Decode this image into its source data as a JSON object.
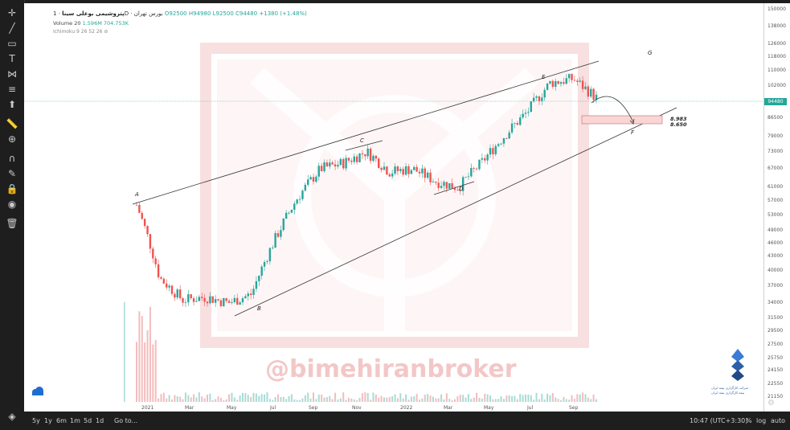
{
  "legend": {
    "symbol": "پتروشیمی بوعلی سینا",
    "interval": "1D",
    "exchange": "بورس تهران",
    "ohlc": "O92500 H94980 L92500 C94480 +1380 (+1.48%)",
    "volume_label": "Volume 20",
    "volume_values": "1.596M 704.753K",
    "ichimoku": "Ichimoku 9 26 52 26"
  },
  "price_axis": {
    "labels": [
      "150000",
      "138000",
      "126000",
      "118000",
      "110000",
      "102000",
      "94480",
      "86500",
      "79000",
      "73000",
      "67000",
      "61000",
      "57000",
      "53000",
      "49000",
      "46000",
      "43000",
      "40000",
      "37000",
      "34000",
      "31500",
      "29500",
      "27500",
      "25750",
      "24150",
      "22550",
      "21150"
    ],
    "current": "94480"
  },
  "time_axis": {
    "labels": [
      "2021",
      "Mar",
      "May",
      "Jul",
      "Sep",
      "Nov",
      "2022",
      "Mar",
      "May",
      "Jul",
      "Sep"
    ]
  },
  "annotations": {
    "points": [
      "A",
      "B",
      "C",
      "D",
      "E",
      "F",
      "G"
    ],
    "target_box_top": "8.983",
    "target_box_bottom": "8.650"
  },
  "watermark": {
    "handle": "@bimehiranbroker"
  },
  "logo": {
    "line1": "شرکت کارگزاری بیمه ایران",
    "line2": "بیمه کارگزاری بیمه ایران"
  },
  "bottom_bar": {
    "ranges": [
      "5y",
      "1y",
      "6m",
      "1m",
      "5d",
      "1d"
    ],
    "goto": "Go to...",
    "time": "10:47 (UTC+3:30)",
    "percent": "%",
    "log": "log",
    "auto": "auto"
  },
  "colors": {
    "up": "#26a69a",
    "down": "#ef5350",
    "watermark": "#f3c7c7"
  },
  "chart_data": {
    "type": "line",
    "title": "",
    "xlabel": "",
    "ylabel": "",
    "x": [
      "2021-01",
      "2021-02",
      "2021-03",
      "2021-04",
      "2021-05",
      "2021-06",
      "2021-07",
      "2021-08",
      "2021-09",
      "2021-10",
      "2021-11",
      "2021-12",
      "2022-01",
      "2022-02",
      "2022-03",
      "2022-04",
      "2022-05",
      "2022-06",
      "2022-07",
      "2022-08",
      "2022-09"
    ],
    "series": [
      {
        "values": [
          55000,
          38000,
          34000,
          34500,
          33500,
          35000,
          46000,
          57000,
          66000,
          68000,
          72000,
          65000,
          66000,
          62000,
          60000,
          68000,
          78000,
          88000,
          102000,
          104000,
          94480
        ]
      }
    ],
    "ylim": [
      21150,
      150000
    ],
    "log_scale": true
  }
}
